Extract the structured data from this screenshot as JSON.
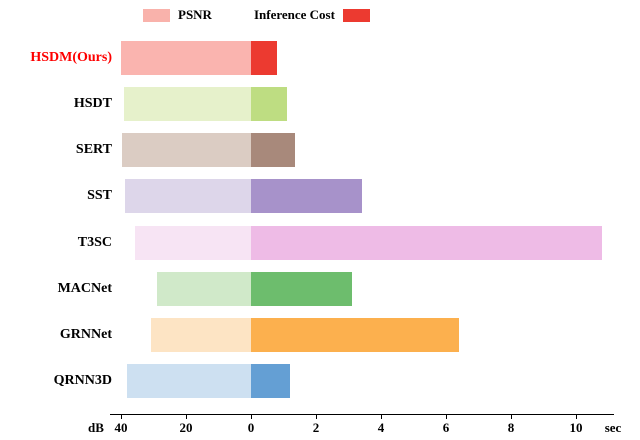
{
  "chart_data": {
    "type": "bar",
    "orientation": "horizontal-diverging",
    "title": "",
    "highlight_color": "#fe0000",
    "legend_position": "top",
    "legend": [
      {
        "label": "PSNR",
        "color": "#f9b2ab"
      },
      {
        "label": "Inference Cost",
        "color": "#ec3a30"
      }
    ],
    "left_axis": {
      "unit": "dB",
      "ticks": [
        40,
        20,
        0
      ],
      "max": 40
    },
    "right_axis": {
      "unit": "sec",
      "ticks": [
        2,
        4,
        6,
        8,
        10
      ],
      "max": 11
    },
    "series": [
      {
        "method": "HSDM(Ours)",
        "highlight": true,
        "psnr_db": 40.0,
        "inference_sec": 0.8,
        "psnr_color": "#fab4af",
        "cost_color": "#ec3a30"
      },
      {
        "method": "HSDT",
        "highlight": false,
        "psnr_db": 39.2,
        "inference_sec": 1.1,
        "psnr_color": "#e6f1cb",
        "cost_color": "#bedd82"
      },
      {
        "method": "SERT",
        "highlight": false,
        "psnr_db": 39.6,
        "inference_sec": 1.35,
        "psnr_color": "#dbccc3",
        "cost_color": "#a8897b"
      },
      {
        "method": "SST",
        "highlight": false,
        "psnr_db": 38.9,
        "inference_sec": 3.4,
        "psnr_color": "#ddd6ea",
        "cost_color": "#a792ca"
      },
      {
        "method": "T3SC",
        "highlight": false,
        "psnr_db": 35.8,
        "inference_sec": 10.8,
        "psnr_color": "#f7e4f4",
        "cost_color": "#eebbe6"
      },
      {
        "method": "MACNet",
        "highlight": false,
        "psnr_db": 28.9,
        "inference_sec": 3.1,
        "psnr_color": "#d0e9c9",
        "cost_color": "#6dbd6d"
      },
      {
        "method": "GRNNet",
        "highlight": false,
        "psnr_db": 30.9,
        "inference_sec": 6.4,
        "psnr_color": "#fde4c4",
        "cost_color": "#fcb04e"
      },
      {
        "method": "QRNN3D",
        "highlight": false,
        "psnr_db": 38.3,
        "inference_sec": 1.2,
        "psnr_color": "#cde0f1",
        "cost_color": "#649fd4"
      }
    ]
  }
}
